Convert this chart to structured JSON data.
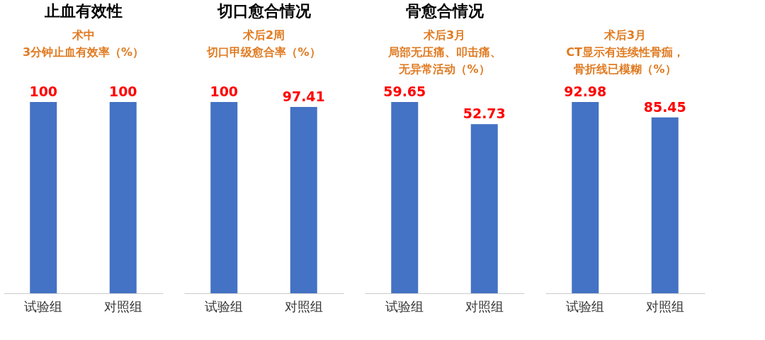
{
  "chart_data": [
    {
      "type": "bar",
      "title": "止血有效性",
      "subtitle": [
        "术中",
        "3分钟止血有效率（%）"
      ],
      "categories": [
        "试验组",
        "对照组"
      ],
      "values": [
        100,
        100
      ],
      "color": "#4472c4",
      "data_labels": true
    },
    {
      "type": "bar",
      "title": "切口愈合情况",
      "subtitle": [
        "术后2周",
        "切口甲级愈合率（%）"
      ],
      "categories": [
        "试验组",
        "对照组"
      ],
      "values": [
        100,
        97.41
      ],
      "color": "#4472c4",
      "data_labels": true
    },
    {
      "type": "bar",
      "title": "骨愈合情况",
      "subtitle": [
        "术后3月",
        "局部无压痛、叩击痛、",
        "无异常活动（%）"
      ],
      "categories": [
        "试验组",
        "对照组"
      ],
      "values": [
        59.65,
        52.73
      ],
      "color": "#4472c4",
      "data_labels": true
    },
    {
      "type": "bar",
      "subtitle": [
        "术后3月",
        "CT显示有连续性骨痂，",
        "骨折线已模糊（%）"
      ],
      "categories": [
        "试验组",
        "对照组"
      ],
      "values": [
        92.98,
        85.45
      ],
      "color": "#4472c4",
      "data_labels": true
    }
  ]
}
